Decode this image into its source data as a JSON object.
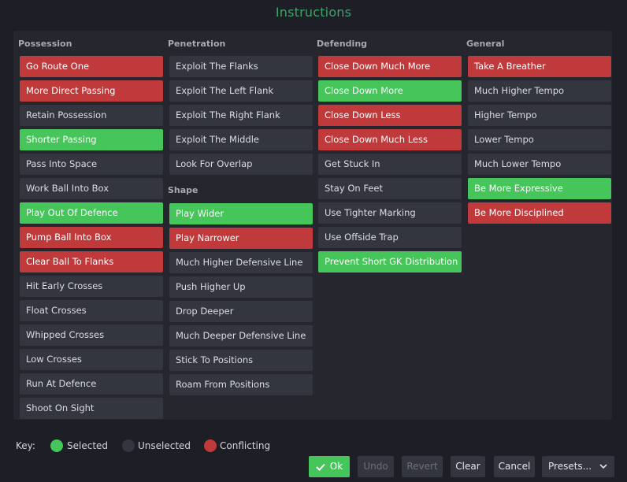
{
  "title": "Instructions",
  "columns": {
    "possession": {
      "header": "Possession",
      "items": [
        {
          "label": "Go Route One",
          "state": "conflicting"
        },
        {
          "label": "More Direct Passing",
          "state": "conflicting"
        },
        {
          "label": "Retain Possession",
          "state": "unselected"
        },
        {
          "label": "Shorter Passing",
          "state": "selected"
        },
        {
          "label": "Pass Into Space",
          "state": "unselected"
        },
        {
          "label": "Work Ball Into Box",
          "state": "unselected"
        },
        {
          "label": "Play Out Of Defence",
          "state": "selected"
        },
        {
          "label": "Pump Ball Into Box",
          "state": "conflicting"
        },
        {
          "label": "Clear Ball To Flanks",
          "state": "conflicting"
        },
        {
          "label": "Hit Early Crosses",
          "state": "unselected"
        },
        {
          "label": "Float Crosses",
          "state": "unselected"
        },
        {
          "label": "Whipped Crosses",
          "state": "unselected"
        },
        {
          "label": "Low Crosses",
          "state": "unselected"
        },
        {
          "label": "Run At Defence",
          "state": "unselected"
        },
        {
          "label": "Shoot On Sight",
          "state": "unselected"
        }
      ]
    },
    "penetration": {
      "header": "Penetration",
      "items": [
        {
          "label": "Exploit The Flanks",
          "state": "unselected"
        },
        {
          "label": "Exploit The Left Flank",
          "state": "unselected"
        },
        {
          "label": "Exploit The Right Flank",
          "state": "unselected"
        },
        {
          "label": "Exploit The Middle",
          "state": "unselected"
        },
        {
          "label": "Look For Overlap",
          "state": "unselected"
        }
      ]
    },
    "shape": {
      "header": "Shape",
      "items": [
        {
          "label": "Play Wider",
          "state": "selected"
        },
        {
          "label": "Play Narrower",
          "state": "conflicting"
        },
        {
          "label": "Much Higher Defensive Line",
          "state": "unselected"
        },
        {
          "label": "Push Higher Up",
          "state": "unselected"
        },
        {
          "label": "Drop Deeper",
          "state": "unselected"
        },
        {
          "label": "Much Deeper Defensive Line",
          "state": "unselected"
        },
        {
          "label": "Stick To Positions",
          "state": "unselected"
        },
        {
          "label": "Roam From Positions",
          "state": "unselected"
        }
      ]
    },
    "defending": {
      "header": "Defending",
      "items": [
        {
          "label": "Close Down Much More",
          "state": "conflicting"
        },
        {
          "label": "Close Down More",
          "state": "selected"
        },
        {
          "label": "Close Down Less",
          "state": "conflicting"
        },
        {
          "label": "Close Down Much Less",
          "state": "conflicting"
        },
        {
          "label": "Get Stuck In",
          "state": "unselected"
        },
        {
          "label": "Stay On Feet",
          "state": "unselected"
        },
        {
          "label": "Use Tighter Marking",
          "state": "unselected"
        },
        {
          "label": "Use Offside Trap",
          "state": "unselected"
        },
        {
          "label": "Prevent Short GK Distribution",
          "state": "selected"
        }
      ]
    },
    "general": {
      "header": "General",
      "items": [
        {
          "label": "Take A Breather",
          "state": "conflicting"
        },
        {
          "label": "Much Higher Tempo",
          "state": "unselected"
        },
        {
          "label": "Higher Tempo",
          "state": "unselected"
        },
        {
          "label": "Lower Tempo",
          "state": "unselected"
        },
        {
          "label": "Much Lower Tempo",
          "state": "unselected"
        },
        {
          "label": "Be More Expressive",
          "state": "selected"
        },
        {
          "label": "Be More Disciplined",
          "state": "conflicting"
        }
      ]
    }
  },
  "key": {
    "label": "Key:",
    "selected": "Selected",
    "unselected": "Unselected",
    "conflicting": "Conflicting"
  },
  "buttons": {
    "ok": "Ok",
    "undo": "Undo",
    "revert": "Revert",
    "clear": "Clear",
    "cancel": "Cancel",
    "presets": "Presets..."
  },
  "colors": {
    "selected": "#45c55a",
    "unselected": "#34363f",
    "conflicting": "#c0393b",
    "title": "#3fa36a"
  }
}
